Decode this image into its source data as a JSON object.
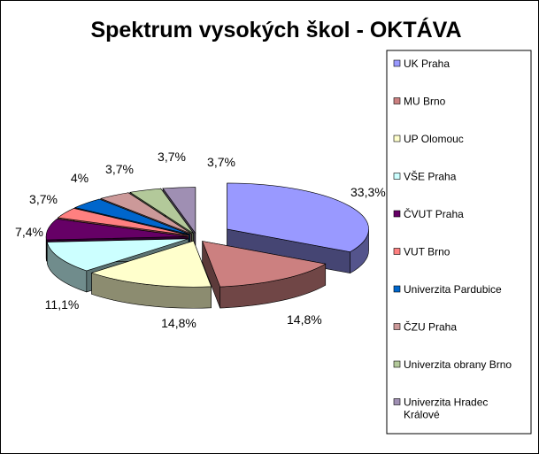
{
  "chart_data": {
    "type": "pie",
    "title": "Spektrum vysokých škol - OKTÁVA",
    "categories": [
      "UK Praha",
      "MU Brno",
      "UP Olomouc",
      "VŠE Praha",
      "ČVUT Praha",
      "VUT Brno",
      "Univerzita Pardubice",
      "ČZU Praha",
      "Univerzita obrany Brno",
      "Univerzita Hradec Králové"
    ],
    "values": [
      33.3,
      14.8,
      14.8,
      11.1,
      7.4,
      3.7,
      4,
      3.7,
      3.7,
      3.7
    ],
    "value_labels": [
      "33,3%",
      "14,8%",
      "14,8%",
      "11,1%",
      "7,4%",
      "3,7%",
      "4%",
      "3,7%",
      "3,7%",
      "3,7%"
    ],
    "colors": [
      "#9999ff",
      "#cc8080",
      "#ffffcc",
      "#ccffff",
      "#660066",
      "#ff8080",
      "#0066cc",
      "#cc9999",
      "#b3c99a",
      "#9f8fb3"
    ],
    "legend_position": "right",
    "style": "3d-exploded"
  }
}
